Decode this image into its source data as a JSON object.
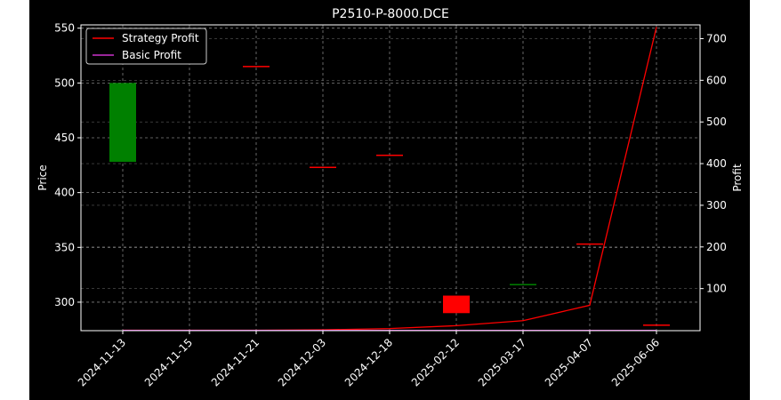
{
  "chart_data": {
    "type": "candlestick+line",
    "title": "P2510-P-8000.DCE",
    "ylabel_left": "Price",
    "ylabel_right": "Profit",
    "categories": [
      "2024-11-13",
      "2024-11-15",
      "2024-11-21",
      "2024-12-03",
      "2024-12-18",
      "2025-02-12",
      "2025-03-17",
      "2025-04-07",
      "2025-06-06"
    ],
    "left_axis": {
      "ylim": [
        274,
        553
      ],
      "ticks": [
        300,
        350,
        400,
        450,
        500,
        550
      ]
    },
    "right_axis": {
      "ylim": [
        -1,
        733
      ],
      "ticks": [
        100,
        200,
        300,
        400,
        500,
        600,
        700
      ]
    },
    "candles": [
      {
        "x": "2024-11-13",
        "open": 428,
        "close": 500,
        "color": "#008000"
      },
      {
        "x": "2024-11-15",
        "open": 0,
        "close": 0,
        "color": "#ff0000",
        "missing": true
      },
      {
        "x": "2024-11-21",
        "open": 515,
        "close": 515,
        "color": "#ff0000"
      },
      {
        "x": "2024-12-03",
        "open": 423,
        "close": 423,
        "color": "#ff0000"
      },
      {
        "x": "2024-12-18",
        "open": 434,
        "close": 434,
        "color": "#ff0000"
      },
      {
        "x": "2025-02-12",
        "open": 306,
        "close": 290,
        "color": "#ff0000"
      },
      {
        "x": "2025-03-17",
        "open": 316,
        "close": 316,
        "color": "#008000"
      },
      {
        "x": "2025-04-07",
        "open": 353,
        "close": 353,
        "color": "#ff0000"
      },
      {
        "x": "2025-06-06",
        "open": 279,
        "close": 279,
        "color": "#ff0000"
      }
    ],
    "series": [
      {
        "name": "Strategy Profit",
        "color": "#ff0000",
        "axis": "right",
        "values": [
          0,
          0,
          0,
          1,
          4,
          11,
          23,
          60,
          728
        ]
      },
      {
        "name": "Basic Profit",
        "color": "#cc33cc",
        "axis": "right",
        "values": [
          0,
          0,
          0,
          0,
          0,
          0,
          0,
          0,
          0
        ]
      }
    ],
    "legend_position": "upper-left",
    "grid": true,
    "colors": {
      "background": "#000000",
      "foreground": "#ffffff",
      "grid": "#808080"
    }
  }
}
